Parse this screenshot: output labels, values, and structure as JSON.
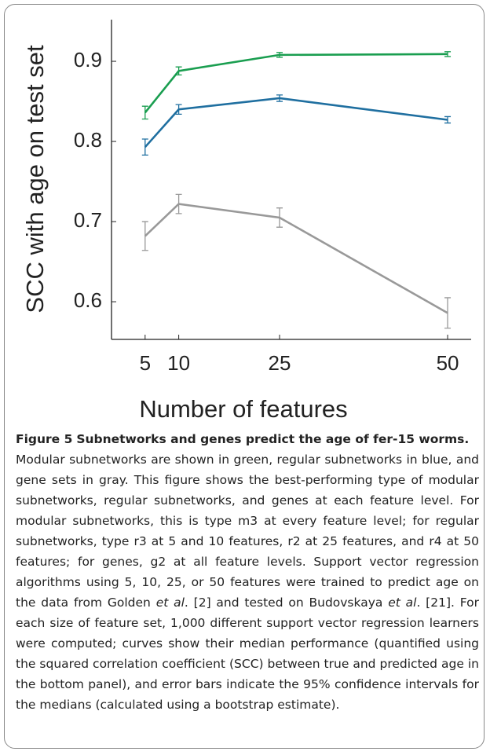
{
  "chart_data": {
    "type": "line",
    "x": [
      5,
      10,
      25,
      50
    ],
    "xlim": [
      0,
      53.5
    ],
    "xticks": [
      5,
      10,
      25,
      50
    ],
    "ylim": [
      0.553,
      0.952
    ],
    "yticks": [
      0.6,
      0.7,
      0.8,
      0.9
    ],
    "xlabel": "Number of features",
    "ylabel": "SCC with age on test set",
    "series": [
      {
        "color": "#1a9e50",
        "values": [
          0.836,
          0.888,
          0.908,
          0.909
        ],
        "errors": [
          0.008,
          0.005,
          0.003,
          0.003
        ]
      },
      {
        "color": "#1f6fa0",
        "values": [
          0.793,
          0.84,
          0.854,
          0.827
        ],
        "errors": [
          0.01,
          0.006,
          0.004,
          0.004
        ]
      },
      {
        "color": "#999999",
        "values": [
          0.682,
          0.722,
          0.705,
          0.586
        ],
        "errors": [
          0.018,
          0.012,
          0.012,
          0.019
        ]
      }
    ]
  },
  "caption": {
    "label": "Figure 5",
    "title": "Subnetworks and genes predict the age of fer-15 worms",
    "end": ".",
    "body": [
      {
        "text": "Modular subnetworks are shown in green, regular subnetworks in blue, and gene sets in gray. This figure shows the best-performing type of modular subnetworks, regular subnetworks, and genes at each feature level. For modular subnetworks, this is type m3 at every feature level; for regular subnetworks, type r3 at 5 and 10 features, r2 at 25 features, and r4 at 50 features; for genes, g2 at all feature levels. Support vector regression algorithms using 5, 10, 25, or 50 features were trained to predict age on the data from Golden ",
        "italic": false
      },
      {
        "text": "et al",
        "italic": true
      },
      {
        "text": ". [2] and tested on Budovskaya ",
        "italic": false
      },
      {
        "text": "et al",
        "italic": true
      },
      {
        "text": ". [21]. For each size of feature set, 1,000 different support vector regression learners were computed; curves show their median performance (quantified using the squared correlation coefficient (SCC) between true and predicted age in the bottom panel), and error bars indicate the 95% confidence intervals for the medians (calculated using a bootstrap estimate).",
        "italic": false
      }
    ]
  }
}
